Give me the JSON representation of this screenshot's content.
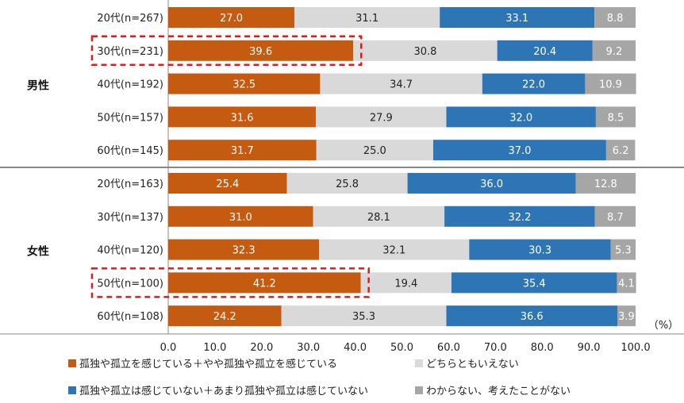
{
  "chart_data": {
    "type": "stacked-horizontal-bar",
    "unit_label": "（%）",
    "xlim": [
      0,
      100
    ],
    "x_ticks": [
      "0.0",
      "10.0",
      "20.0",
      "30.0",
      "40.0",
      "50.0",
      "60.0",
      "70.0",
      "80.0",
      "90.0",
      "100.0"
    ],
    "groups": [
      {
        "name": "男性",
        "rows": [
          {
            "label": "20代(n=267)",
            "values": [
              27.0,
              31.1,
              33.1,
              8.8
            ],
            "highlight": false
          },
          {
            "label": "30代(n=231)",
            "values": [
              39.6,
              30.8,
              20.4,
              9.2
            ],
            "highlight": true
          },
          {
            "label": "40代(n=192)",
            "values": [
              32.5,
              34.7,
              22.0,
              10.9
            ],
            "highlight": false
          },
          {
            "label": "50代(n=157)",
            "values": [
              31.6,
              27.9,
              32.0,
              8.5
            ],
            "highlight": false
          },
          {
            "label": "60代(n=145)",
            "values": [
              31.7,
              25.0,
              37.0,
              6.2
            ],
            "highlight": false
          }
        ]
      },
      {
        "name": "女性",
        "rows": [
          {
            "label": "20代(n=163)",
            "values": [
              25.4,
              25.8,
              36.0,
              12.8
            ],
            "highlight": false
          },
          {
            "label": "30代(n=137)",
            "values": [
              31.0,
              28.1,
              32.2,
              8.7
            ],
            "highlight": false
          },
          {
            "label": "40代(n=120)",
            "values": [
              32.3,
              32.1,
              30.3,
              5.3
            ],
            "highlight": false
          },
          {
            "label": "50代(n=100)",
            "values": [
              41.2,
              19.4,
              35.4,
              4.1
            ],
            "highlight": true
          },
          {
            "label": "60代(n=108)",
            "values": [
              24.2,
              35.3,
              36.6,
              3.9
            ],
            "highlight": false
          }
        ]
      }
    ],
    "series": [
      {
        "name": "孤独や孤立を感じている＋やや孤独や孤立を感じている",
        "color": "#c55a11",
        "label_color": "#ffffff"
      },
      {
        "name": "どちらともいえない",
        "color": "#d9d9d9",
        "label_color": "#222222"
      },
      {
        "name": "孤独や孤立は感じていない＋あまり孤独や孤立は感じていない",
        "color": "#2e75b6",
        "label_color": "#ffffff"
      },
      {
        "name": "わからない、考えたことがない",
        "color": "#a6a6a6",
        "label_color": "#ffffff"
      }
    ],
    "highlight_color": "#e31a1c"
  }
}
